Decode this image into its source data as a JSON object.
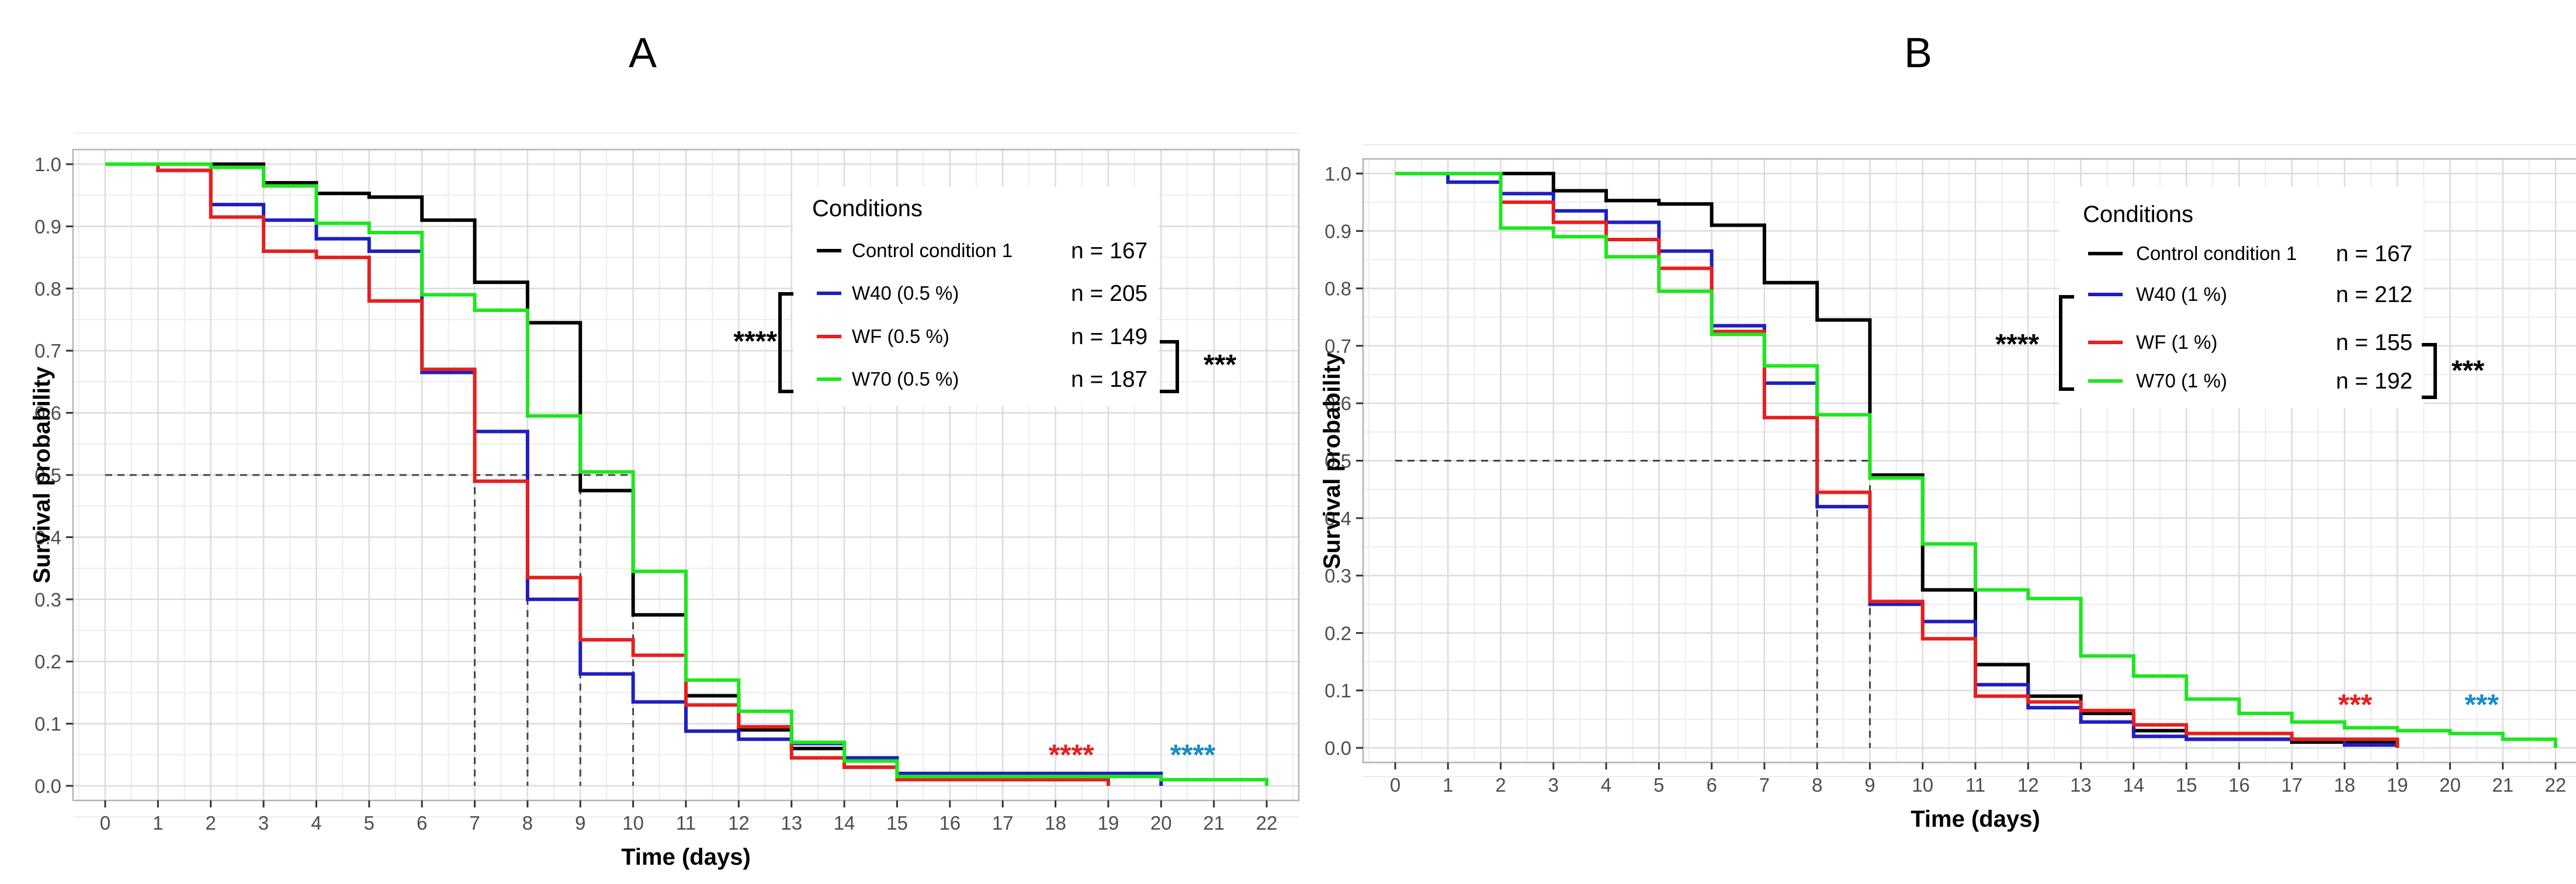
{
  "colors": {
    "control": "#000000",
    "W40": "#1f1fbf",
    "WF": "#e61f1f",
    "W70": "#1ee61e",
    "sig_red": "#e61f1f",
    "sig_blue": "#1a8cc4"
  },
  "chart_data": [
    {
      "type": "line",
      "step": true,
      "panel": "A",
      "title": "A",
      "xlabel": "Time (days)",
      "ylabel": "Survival probability",
      "xlim": [
        0,
        22
      ],
      "ylim": [
        0,
        1
      ],
      "xticks": [
        "0",
        "1",
        "2",
        "3",
        "4",
        "5",
        "6",
        "7",
        "8",
        "9",
        "10",
        "11",
        "12",
        "13",
        "14",
        "15",
        "16",
        "17",
        "18",
        "19",
        "20",
        "21",
        "22"
      ],
      "yticks": [
        "0.0",
        "0.1",
        "0.2",
        "0.3",
        "0.4",
        "0.5",
        "0.6",
        "0.7",
        "0.8",
        "0.9",
        "1.0"
      ],
      "legend_title": "Conditions",
      "legend_position": "top-right",
      "series": [
        {
          "name": "Control condition 1",
          "n": "n = 167",
          "color_key": "control",
          "x": [
            0,
            2,
            3,
            4,
            5,
            6,
            7,
            8,
            9,
            10,
            11,
            12,
            13,
            14,
            15,
            17,
            19
          ],
          "values": [
            1.0,
            1.0,
            0.97,
            0.953,
            0.947,
            0.91,
            0.81,
            0.745,
            0.475,
            0.275,
            0.145,
            0.09,
            0.06,
            0.03,
            0.015,
            0.01,
            0.0
          ]
        },
        {
          "name": "W40 (0.5 %)",
          "n": "n = 205",
          "color_key": "W40",
          "x": [
            0,
            1,
            2,
            3,
            4,
            5,
            6,
            7,
            8,
            9,
            10,
            11,
            12,
            13,
            14,
            15,
            20
          ],
          "values": [
            1.0,
            0.99,
            0.935,
            0.91,
            0.88,
            0.86,
            0.665,
            0.57,
            0.3,
            0.18,
            0.135,
            0.088,
            0.075,
            0.068,
            0.045,
            0.02,
            0.0
          ]
        },
        {
          "name": "WF (0.5 %)",
          "n": "n = 149",
          "color_key": "WF",
          "x": [
            0,
            1,
            2,
            3,
            4,
            5,
            6,
            7,
            8,
            9,
            10,
            11,
            12,
            13,
            14,
            15,
            19
          ],
          "values": [
            1.0,
            0.99,
            0.915,
            0.86,
            0.85,
            0.78,
            0.67,
            0.49,
            0.335,
            0.235,
            0.21,
            0.13,
            0.095,
            0.045,
            0.03,
            0.01,
            0.0
          ]
        },
        {
          "name": "W70 (0.5 %)",
          "n": "n = 187",
          "color_key": "W70",
          "x": [
            0,
            2,
            3,
            4,
            5,
            6,
            7,
            8,
            9,
            10,
            11,
            12,
            13,
            14,
            15,
            20,
            22
          ],
          "values": [
            1.0,
            0.995,
            0.965,
            0.905,
            0.89,
            0.79,
            0.765,
            0.595,
            0.505,
            0.345,
            0.17,
            0.12,
            0.07,
            0.04,
            0.015,
            0.01,
            0.0
          ]
        }
      ],
      "median_lines": [
        7,
        8,
        9,
        10
      ],
      "median_level": 0.5,
      "bracket_left_stars": "****",
      "bracket_right_stars": "***",
      "sig_red": "****",
      "sig_blue": "****",
      "sig_red_x": 18.3,
      "sig_blue_x": 20.6,
      "sig_y": 0.045
    },
    {
      "type": "line",
      "step": true,
      "panel": "B",
      "title": "B",
      "xlabel": "Time (days)",
      "ylabel": "Survival probability",
      "xlim": [
        0,
        22
      ],
      "ylim": [
        0,
        1
      ],
      "xticks": [
        "0",
        "1",
        "2",
        "3",
        "4",
        "5",
        "6",
        "7",
        "8",
        "9",
        "10",
        "11",
        "12",
        "13",
        "14",
        "15",
        "16",
        "17",
        "18",
        "19",
        "20",
        "21",
        "22"
      ],
      "yticks": [
        "0.0",
        "0.1",
        "0.2",
        "0.3",
        "0.4",
        "0.5",
        "0.6",
        "0.7",
        "0.8",
        "0.9",
        "1.0"
      ],
      "legend_title": "Conditions",
      "legend_position": "top-right",
      "series": [
        {
          "name": "Control condition 1",
          "n": "n = 167",
          "color_key": "control",
          "x": [
            0,
            2,
            3,
            4,
            5,
            6,
            7,
            8,
            9,
            10,
            11,
            12,
            13,
            14,
            15,
            17,
            19
          ],
          "values": [
            1.0,
            1.0,
            0.97,
            0.953,
            0.947,
            0.91,
            0.81,
            0.745,
            0.475,
            0.275,
            0.145,
            0.09,
            0.06,
            0.03,
            0.015,
            0.01,
            0.0
          ]
        },
        {
          "name": "W40 (1 %)",
          "n": "n = 212",
          "color_key": "W40",
          "x": [
            0,
            1,
            2,
            3,
            4,
            5,
            6,
            7,
            8,
            9,
            10,
            11,
            12,
            13,
            14,
            15,
            18,
            19
          ],
          "values": [
            1.0,
            0.985,
            0.965,
            0.935,
            0.915,
            0.865,
            0.735,
            0.635,
            0.42,
            0.25,
            0.22,
            0.11,
            0.07,
            0.045,
            0.02,
            0.015,
            0.005,
            0.0
          ]
        },
        {
          "name": "WF (1 %)",
          "n": "n = 155",
          "color_key": "WF",
          "x": [
            0,
            1,
            2,
            3,
            4,
            5,
            6,
            7,
            8,
            9,
            10,
            11,
            12,
            13,
            14,
            15,
            17,
            19
          ],
          "values": [
            1.0,
            1.0,
            0.95,
            0.915,
            0.885,
            0.835,
            0.725,
            0.575,
            0.445,
            0.255,
            0.19,
            0.09,
            0.08,
            0.065,
            0.04,
            0.025,
            0.015,
            0.0
          ]
        },
        {
          "name": "W70 (1 %)",
          "n": "n = 192",
          "color_key": "W70",
          "x": [
            0,
            2,
            3,
            4,
            5,
            6,
            7,
            8,
            9,
            10,
            11,
            12,
            13,
            14,
            15,
            16,
            17,
            18,
            19,
            20,
            21,
            22
          ],
          "values": [
            1.0,
            0.905,
            0.89,
            0.855,
            0.795,
            0.72,
            0.665,
            0.58,
            0.47,
            0.355,
            0.275,
            0.26,
            0.16,
            0.125,
            0.085,
            0.06,
            0.045,
            0.035,
            0.03,
            0.025,
            0.015,
            0.0
          ]
        }
      ],
      "median_lines": [
        8,
        9
      ],
      "median_level": 0.5,
      "bracket_left_stars": "****",
      "bracket_right_stars": "***",
      "sig_red": "***",
      "sig_blue": "***",
      "sig_red_x": 18.2,
      "sig_blue_x": 20.6,
      "sig_y": 0.07
    }
  ]
}
